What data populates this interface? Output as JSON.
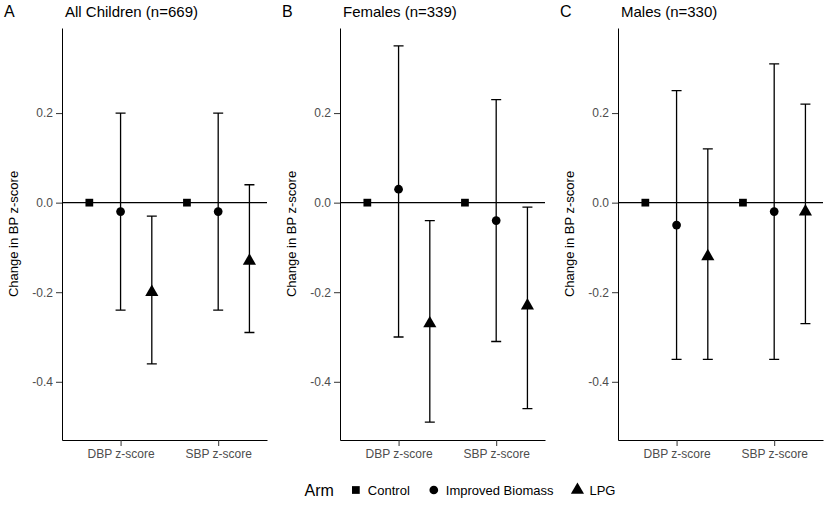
{
  "chart_data": [
    {
      "type": "scatter",
      "panel_label": "A",
      "title": "All Children (n=669)",
      "y_label": "Change in BP z-score",
      "categories": [
        "DBP z-score",
        "SBP z-score"
      ],
      "ylim": [
        -0.53,
        0.39
      ],
      "yticks": [
        -0.4,
        -0.2,
        {
          "value": 0,
          "label": "0.0"
        },
        0.2
      ],
      "hline": 0,
      "legend": "bottom",
      "legend_title": "Arm",
      "series": [
        {
          "name": "Control",
          "color": "#000000",
          "marker": "square",
          "values": [
            0,
            0
          ]
        },
        {
          "name": "Improved Biomass",
          "color": "#000000",
          "marker": "circle",
          "values": [
            -0.02,
            -0.02
          ],
          "ci_low": [
            -0.24,
            -0.24
          ],
          "ci_high": [
            0.2,
            0.2
          ]
        },
        {
          "name": "LPG",
          "color": "#000000",
          "marker": "triangle",
          "values": [
            -0.2,
            -0.13
          ],
          "ci_low": [
            -0.36,
            -0.29
          ],
          "ci_high": [
            -0.03,
            0.04
          ]
        }
      ]
    },
    {
      "type": "scatter",
      "panel_label": "B",
      "title": "Females (n=339)",
      "y_label": "Change in BP z-score",
      "categories": [
        "DBP z-score",
        "SBP z-score"
      ],
      "ylim": [
        -0.53,
        0.39
      ],
      "yticks": [
        -0.4,
        -0.2,
        {
          "value": 0,
          "label": "0.0"
        },
        0.2
      ],
      "hline": 0,
      "series": [
        {
          "color": "#000000",
          "marker": "square",
          "values": [
            0,
            0
          ]
        },
        {
          "color": "#000000",
          "marker": "circle",
          "values": [
            0.03,
            -0.04
          ],
          "ci_low": [
            -0.3,
            -0.31
          ],
          "ci_high": [
            0.35,
            0.23
          ]
        },
        {
          "color": "#000000",
          "marker": "triangle",
          "values": [
            -0.27,
            -0.23
          ],
          "ci_low": [
            -0.49,
            -0.46
          ],
          "ci_high": [
            -0.04,
            -0.01
          ]
        }
      ]
    },
    {
      "type": "scatter",
      "panel_label": "C",
      "title": "Males (n=330)",
      "y_label": "Change in BP z-score",
      "categories": [
        "DBP z-score",
        "SBP z-score"
      ],
      "ylim": [
        -0.53,
        0.39
      ],
      "yticks": [
        -0.4,
        -0.2,
        {
          "value": 0,
          "label": "0.0"
        },
        0.2
      ],
      "hline": 0,
      "series": [
        {
          "color": "#000000",
          "marker": "square",
          "values": [
            0,
            0
          ]
        },
        {
          "color": "#000000",
          "marker": "circle",
          "values": [
            -0.05,
            -0.02
          ],
          "ci_low": [
            -0.35,
            -0.35
          ],
          "ci_high": [
            0.25,
            0.31
          ]
        },
        {
          "color": "#000000",
          "marker": "triangle",
          "values": [
            -0.12,
            -0.02
          ],
          "ci_low": [
            -0.35,
            -0.27
          ],
          "ci_high": [
            0.12,
            0.22
          ]
        }
      ]
    }
  ]
}
